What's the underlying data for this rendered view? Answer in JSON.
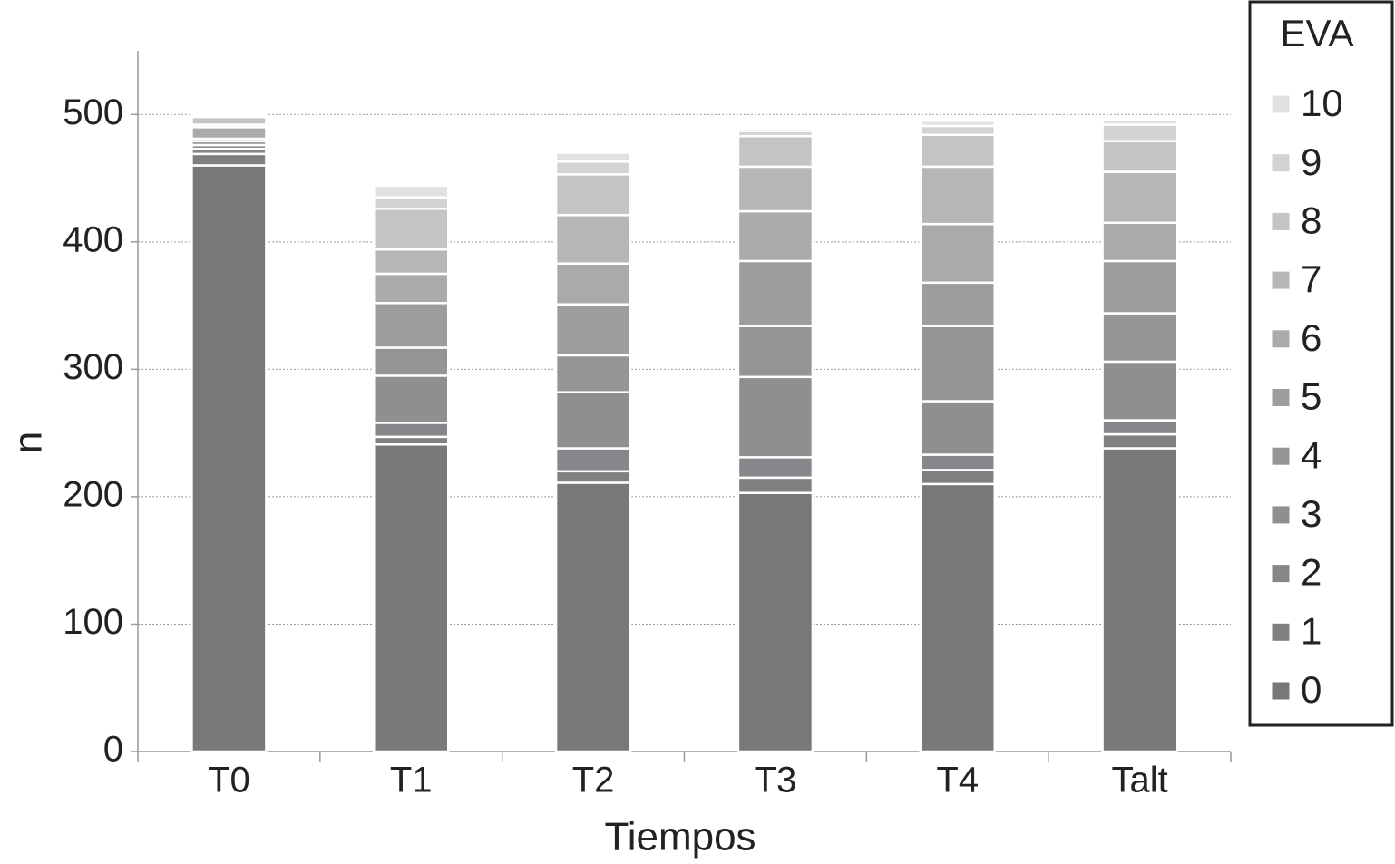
{
  "chart_data": {
    "type": "stacked_bar",
    "x_label": "Tiempos",
    "y_label": "n",
    "categories": [
      "T0",
      "T1",
      "T2",
      "T3",
      "T4",
      "Talt"
    ],
    "legend_title": "EVA",
    "series": [
      {
        "name": "0",
        "color": "#77787a",
        "values": [
          460,
          241,
          211,
          203,
          210,
          238
        ]
      },
      {
        "name": "1",
        "color": "#7f8082",
        "values": [
          9,
          6,
          9,
          12,
          11,
          11
        ]
      },
      {
        "name": "2",
        "color": "#86878a",
        "values": [
          4,
          11,
          18,
          16,
          12,
          11
        ]
      },
      {
        "name": "3",
        "color": "#8e8f91",
        "values": [
          3,
          37,
          44,
          63,
          42,
          46
        ]
      },
      {
        "name": "4",
        "color": "#949597",
        "values": [
          3,
          22,
          29,
          40,
          59,
          38
        ]
      },
      {
        "name": "5",
        "color": "#9c9d9f",
        "values": [
          2,
          35,
          40,
          51,
          34,
          41
        ]
      },
      {
        "name": "6",
        "color": "#a9aaac",
        "values": [
          9,
          23,
          32,
          39,
          46,
          30
        ]
      },
      {
        "name": "7",
        "color": "#b5b6b8",
        "values": [
          2,
          19,
          38,
          35,
          45,
          40
        ]
      },
      {
        "name": "8",
        "color": "#c3c4c6",
        "values": [
          6,
          32,
          32,
          24,
          25,
          24
        ]
      },
      {
        "name": "9",
        "color": "#d2d3d5",
        "values": [
          1,
          9,
          10,
          4,
          7,
          13
        ]
      },
      {
        "name": "10",
        "color": "#e0e1e3",
        "values": [
          1,
          9,
          7,
          2,
          4,
          4
        ]
      }
    ],
    "ylim": [
      0,
      550
    ],
    "yticks": [
      0,
      100,
      200,
      300,
      400,
      500
    ],
    "grid": true
  }
}
